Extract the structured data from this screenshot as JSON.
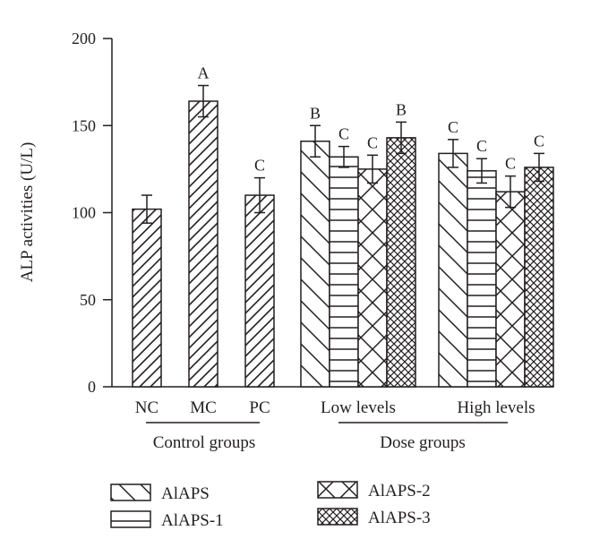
{
  "chart_data": {
    "type": "bar",
    "xlabel": "",
    "ylabel": "ALP activities (U/L)",
    "ylim": [
      0,
      200
    ],
    "yticks": [
      0,
      50,
      100,
      150,
      200
    ],
    "grid": false,
    "legend_position": "bottom",
    "groups": [
      {
        "label": "Control groups",
        "categories": [
          {
            "label": "NC",
            "bars": [
              {
                "series": "AlAPS",
                "pattern": "diag-right",
                "value": 102,
                "error": 8,
                "sig": ""
              }
            ]
          },
          {
            "label": "MC",
            "bars": [
              {
                "series": "AlAPS",
                "pattern": "diag-right",
                "value": 164,
                "error": 9,
                "sig": "A"
              }
            ]
          },
          {
            "label": "PC",
            "bars": [
              {
                "series": "AlAPS",
                "pattern": "diag-right",
                "value": 110,
                "error": 10,
                "sig": "C"
              }
            ]
          }
        ]
      },
      {
        "label": "Dose groups",
        "categories": [
          {
            "label": "Low levels",
            "bars": [
              {
                "series": "AlAPS",
                "pattern": "diag-left",
                "value": 141,
                "error": 9,
                "sig": "B"
              },
              {
                "series": "AlAPS-1",
                "pattern": "horizontal",
                "value": 132,
                "error": 6,
                "sig": "C"
              },
              {
                "series": "AlAPS-2",
                "pattern": "cross",
                "value": 125,
                "error": 8,
                "sig": "C"
              },
              {
                "series": "AlAPS-3",
                "pattern": "fine-cross",
                "value": 143,
                "error": 9,
                "sig": "B"
              }
            ]
          },
          {
            "label": "High levels",
            "bars": [
              {
                "series": "AlAPS",
                "pattern": "diag-left",
                "value": 134,
                "error": 8,
                "sig": "C"
              },
              {
                "series": "AlAPS-1",
                "pattern": "horizontal",
                "value": 124,
                "error": 7,
                "sig": "C"
              },
              {
                "series": "AlAPS-2",
                "pattern": "cross",
                "value": 112,
                "error": 9,
                "sig": "C"
              },
              {
                "series": "AlAPS-3",
                "pattern": "fine-cross",
                "value": 126,
                "error": 8,
                "sig": "C"
              }
            ]
          }
        ]
      }
    ],
    "legend": [
      {
        "label": "AlAPS",
        "pattern": "diag-left"
      },
      {
        "label": "AlAPS-1",
        "pattern": "horizontal"
      },
      {
        "label": "AlAPS-2",
        "pattern": "cross"
      },
      {
        "label": "AlAPS-3",
        "pattern": "fine-cross"
      }
    ],
    "colors": {
      "ink": "#231f20",
      "background": "#ffffff"
    }
  }
}
